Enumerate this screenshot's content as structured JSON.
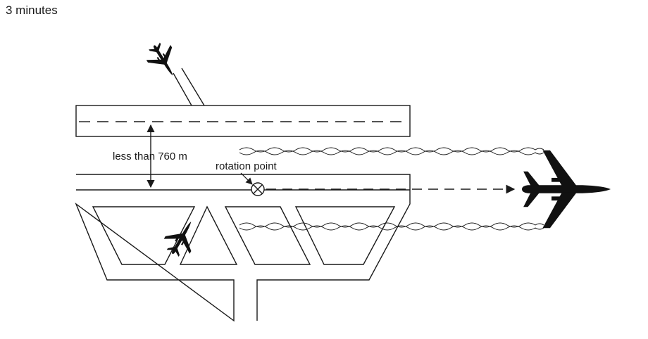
{
  "header": {
    "title": "3 minutes"
  },
  "diagram": {
    "separation_label": "less than 760 m",
    "rotation_point_label": "rotation point",
    "icons": [
      "airplane-icon",
      "rotation-point-marker-icon",
      "arrow-icon"
    ]
  }
}
